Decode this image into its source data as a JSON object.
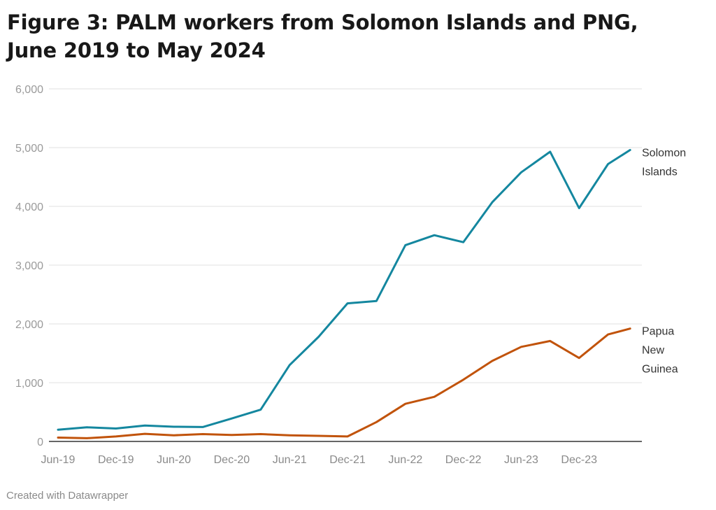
{
  "title": "Figure 3: PALM workers from Solomon Islands and PNG, June 2019 to May 2024",
  "title_line1": "Figure 3: PALM workers from Solomon Islands and PNG,",
  "title_line2": "June 2019 to May 2024",
  "footer": "Created with Datawrapper",
  "colors": {
    "solomon": "#14879f",
    "png": "#c1530b",
    "grid": "#e6e6e6",
    "axis": "#333333"
  },
  "chart_data": {
    "type": "line",
    "title": "Figure 3: PALM workers from Solomon Islands and PNG, June 2019 to May 2024",
    "xlabel": "",
    "ylabel": "",
    "ylim": [
      0,
      6000
    ],
    "yticks": [
      "0",
      "1,000",
      "2,000",
      "3,000",
      "4,000",
      "5,000",
      "6,000"
    ],
    "xticks": [
      "Jun-19",
      "Dec-19",
      "Jun-20",
      "Dec-20",
      "Jun-21",
      "Dec-21",
      "Jun-22",
      "Dec-22",
      "Jun-23",
      "Dec-23"
    ],
    "grid": true,
    "legend_position": "direct labels at line ends (right)",
    "x": [
      "Jun-19",
      "Sep-19",
      "Dec-19",
      "Mar-20",
      "Jun-20",
      "Sep-20",
      "Dec-20",
      "Mar-21",
      "Jun-21",
      "Sep-21",
      "Dec-21",
      "Mar-22",
      "Jun-22",
      "Sep-22",
      "Dec-22",
      "Mar-23",
      "Jun-23",
      "Sep-23",
      "Dec-23",
      "Mar-24",
      "May-24"
    ],
    "series": [
      {
        "name": "Solomon Islands",
        "label_lines": [
          "Solomon",
          "Islands"
        ],
        "color": "#14879f",
        "values": [
          200,
          240,
          220,
          270,
          250,
          245,
          390,
          540,
          1300,
          1780,
          2350,
          2390,
          3340,
          3510,
          3390,
          4070,
          4580,
          4930,
          3970,
          4720,
          4960
        ]
      },
      {
        "name": "Papua New Guinea",
        "label_lines": [
          "Papua",
          "New",
          "Guinea"
        ],
        "color": "#c1530b",
        "values": [
          65,
          55,
          85,
          130,
          105,
          125,
          110,
          125,
          105,
          95,
          85,
          330,
          640,
          760,
          1050,
          1370,
          1610,
          1710,
          1420,
          1820,
          1920
        ]
      }
    ]
  }
}
